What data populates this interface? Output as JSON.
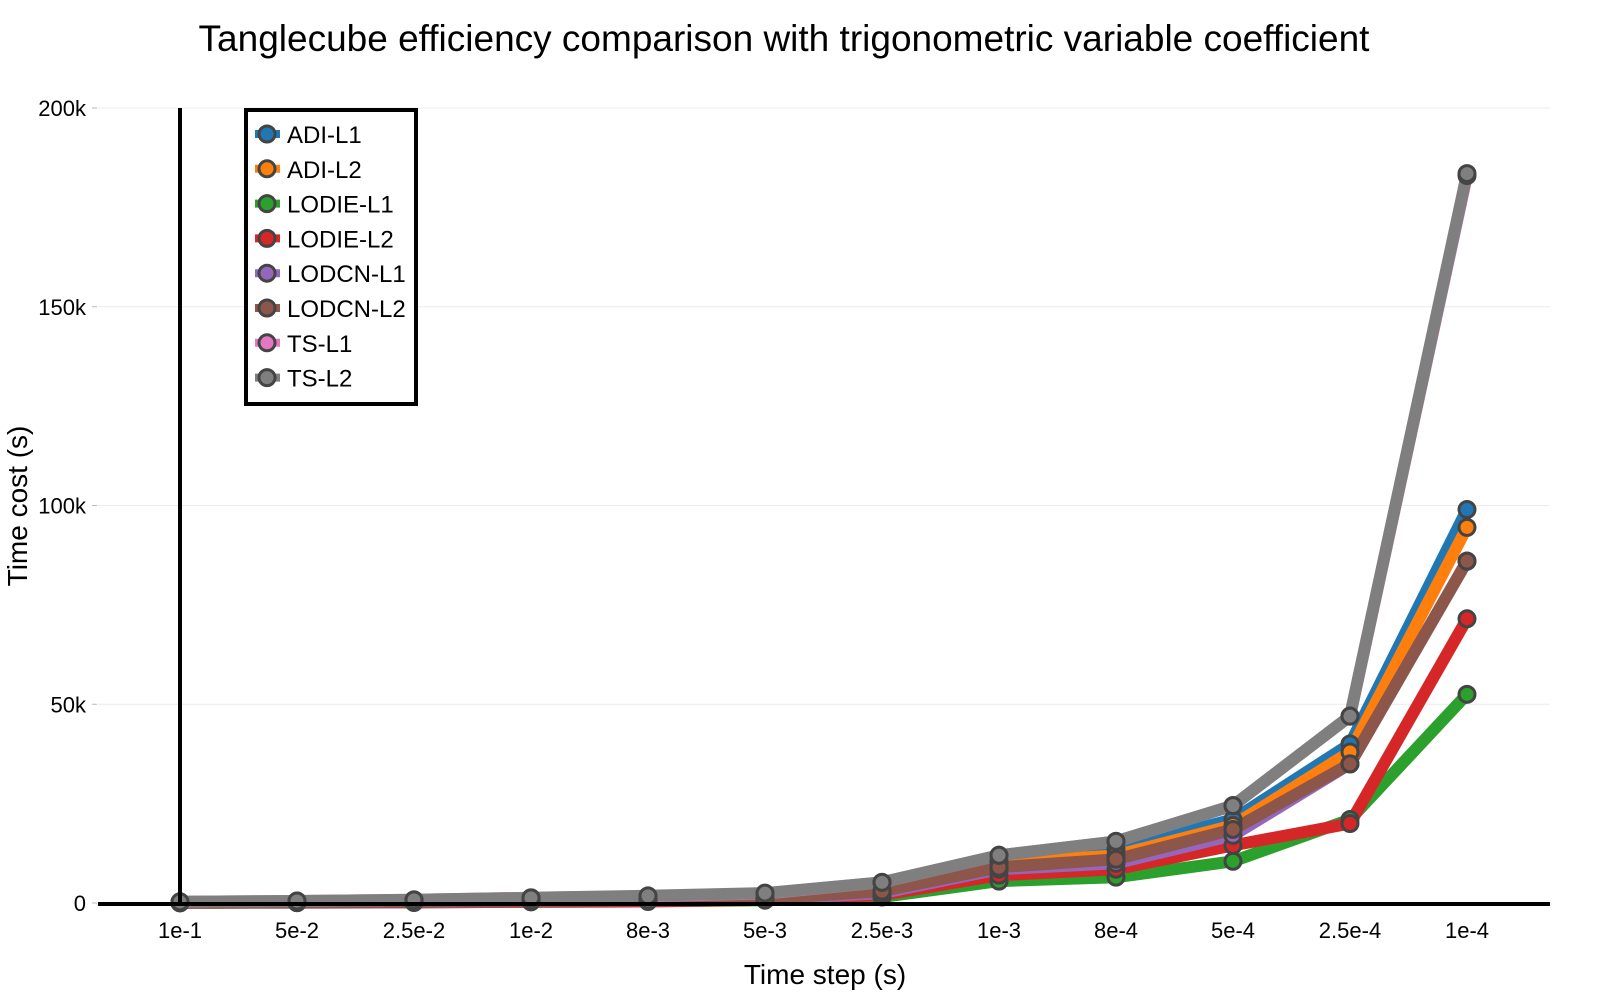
{
  "chart_data": {
    "type": "line",
    "title": "Tanglecube efficiency comparison with trigonometric variable coefficient",
    "xlabel": "Time step (s)",
    "ylabel": "Time cost (s)",
    "categories": [
      "1e-1",
      "5e-2",
      "2.5e-2",
      "1e-2",
      "8e-3",
      "5e-3",
      "2.5e-3",
      "1e-3",
      "8e-4",
      "5e-4",
      "2.5e-4",
      "1e-4"
    ],
    "ylim": [
      0,
      200000
    ],
    "yticks": [
      0,
      50000,
      100000,
      150000,
      200000
    ],
    "ytick_labels": [
      "0",
      "50k",
      "100k",
      "150k",
      "200k"
    ],
    "grid": true,
    "legend_position": "top-left",
    "series": [
      {
        "name": "ADI-L1",
        "color": "#1f77b4",
        "values": [
          100,
          150,
          250,
          600,
          800,
          1000,
          3000,
          10500,
          13500,
          21000,
          40000,
          99000
        ]
      },
      {
        "name": "ADI-L2",
        "color": "#ff7f0e",
        "values": [
          100,
          150,
          250,
          600,
          800,
          1000,
          2800,
          10000,
          12000,
          19500,
          38000,
          94500
        ]
      },
      {
        "name": "LODIE-L1",
        "color": "#2ca02c",
        "values": [
          50,
          100,
          150,
          300,
          400,
          700,
          1500,
          5500,
          6500,
          10500,
          21000,
          52500
        ]
      },
      {
        "name": "LODIE-L2",
        "color": "#d62728",
        "values": [
          50,
          100,
          150,
          300,
          400,
          800,
          2000,
          7000,
          8500,
          14500,
          20000,
          71500
        ]
      },
      {
        "name": "LODCN-L1",
        "color": "#9467bd",
        "values": [
          100,
          150,
          200,
          500,
          700,
          900,
          2500,
          8500,
          10000,
          17000,
          35000,
          86000
        ]
      },
      {
        "name": "LODCN-L2",
        "color": "#8c564b",
        "values": [
          100,
          150,
          250,
          550,
          750,
          1000,
          3000,
          9000,
          11000,
          18500,
          35000,
          86000
        ]
      },
      {
        "name": "TS-L1",
        "color": "#e377c2",
        "values": [
          300,
          500,
          800,
          1300,
          1700,
          2400,
          5200,
          12000,
          15500,
          24500,
          47000,
          183000
        ]
      },
      {
        "name": "TS-L2",
        "color": "#7f7f7f",
        "values": [
          300,
          500,
          800,
          1300,
          1800,
          2500,
          5200,
          12000,
          15500,
          24500,
          47000,
          183500
        ]
      }
    ]
  }
}
